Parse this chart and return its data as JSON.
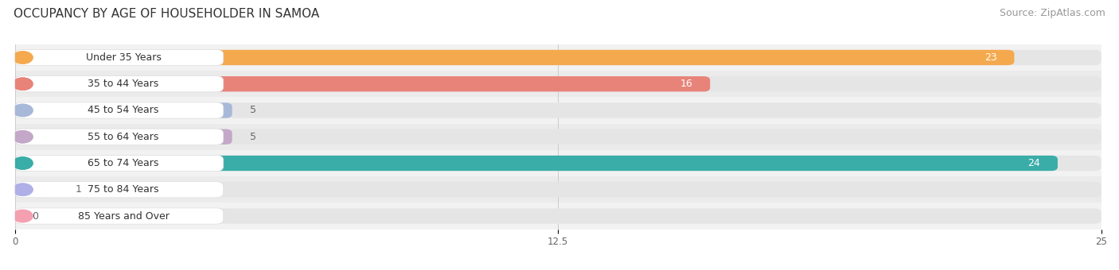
{
  "title": "OCCUPANCY BY AGE OF HOUSEHOLDER IN SAMOA",
  "source": "Source: ZipAtlas.com",
  "categories": [
    "Under 35 Years",
    "35 to 44 Years",
    "45 to 54 Years",
    "55 to 64 Years",
    "65 to 74 Years",
    "75 to 84 Years",
    "85 Years and Over"
  ],
  "values": [
    23,
    16,
    5,
    5,
    24,
    1,
    0
  ],
  "bar_colors": [
    "#F5A94E",
    "#E8837A",
    "#A8B8D8",
    "#C4A8C8",
    "#3AADA8",
    "#B0B0E8",
    "#F5A0B0"
  ],
  "bar_bg_color": "#E5E5E5",
  "xlim": [
    0,
    25
  ],
  "xticks": [
    0,
    12.5,
    25
  ],
  "title_fontsize": 11,
  "source_fontsize": 9,
  "label_fontsize": 9,
  "value_color_inside": "#FFFFFF",
  "value_color_outside": "#666666",
  "bar_height": 0.58,
  "row_bg_even": "#F2F2F2",
  "row_bg_odd": "#EBEBEB"
}
